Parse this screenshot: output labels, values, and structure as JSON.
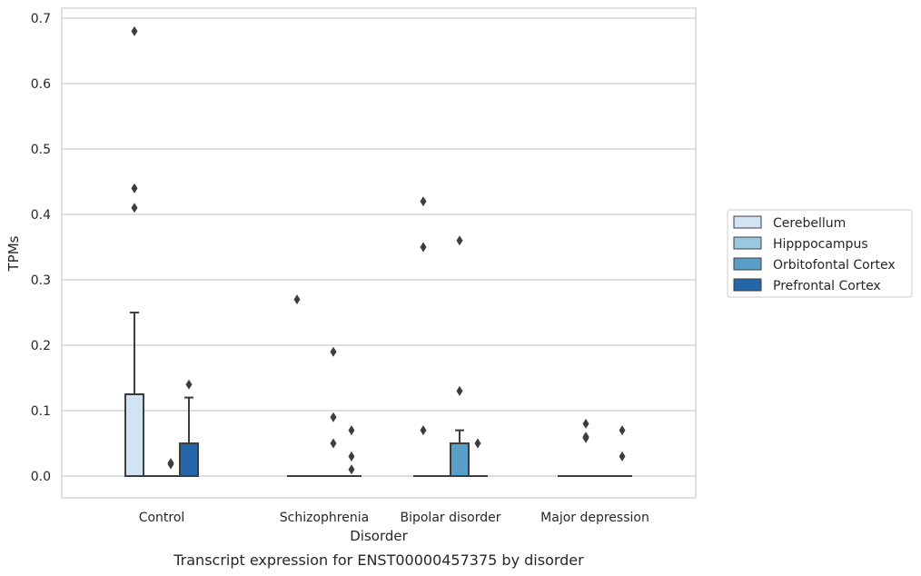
{
  "chart_data": {
    "type": "box",
    "title": "",
    "xlabel": "Disorder",
    "ylabel": "TPMs",
    "caption": "Transcript expression for ENST00000457375 by disorder",
    "ylim": [
      -0.034,
      0.714
    ],
    "yticks": [
      "0.0",
      "0.1",
      "0.2",
      "0.3",
      "0.4",
      "0.5",
      "0.6",
      "0.7"
    ],
    "ytick_values": [
      0,
      0.1,
      0.2,
      0.3,
      0.4,
      0.5,
      0.6,
      0.7
    ],
    "grid": true,
    "legend_position": "right",
    "categories": [
      "Control",
      "Schizophrenia",
      "Bipolar disorder",
      "Major depression"
    ],
    "series": [
      {
        "name": "Cerebellum",
        "color": "#d2e3f3",
        "boxes": [
          {
            "q1": 0,
            "median": 0,
            "q3": 0.125,
            "whisker_low": 0,
            "whisker_high": 0.25,
            "outliers": [
              0.68,
              0.44,
              0.41
            ]
          },
          {
            "q1": 0,
            "median": 0,
            "q3": 0,
            "whisker_low": 0,
            "whisker_high": 0,
            "outliers": [
              0.27
            ]
          },
          {
            "q1": 0,
            "median": 0,
            "q3": 0,
            "whisker_low": 0,
            "whisker_high": 0,
            "outliers": [
              0.42,
              0.35,
              0.07
            ]
          },
          {
            "q1": 0,
            "median": 0,
            "q3": 0,
            "whisker_low": 0,
            "whisker_high": 0,
            "outliers": []
          }
        ]
      },
      {
        "name": "Hipppocampus",
        "color": "#9ac8e0",
        "boxes": [
          {
            "q1": 0,
            "median": 0,
            "q3": 0,
            "whisker_low": 0,
            "whisker_high": 0,
            "outliers": []
          },
          {
            "q1": 0,
            "median": 0,
            "q3": 0,
            "whisker_low": 0,
            "whisker_high": 0,
            "outliers": []
          },
          {
            "q1": 0,
            "median": 0,
            "q3": 0,
            "whisker_low": 0,
            "whisker_high": 0,
            "outliers": []
          },
          {
            "q1": 0,
            "median": 0,
            "q3": 0,
            "whisker_low": 0,
            "whisker_high": 0,
            "outliers": [
              0.08,
              0.06,
              0.058
            ]
          }
        ]
      },
      {
        "name": "Orbitofontal Cortex",
        "color": "#5a9fca",
        "boxes": [
          {
            "q1": 0,
            "median": 0,
            "q3": 0,
            "whisker_low": 0,
            "whisker_high": 0,
            "outliers": [
              0.02,
              0.018
            ]
          },
          {
            "q1": 0,
            "median": 0,
            "q3": 0,
            "whisker_low": 0,
            "whisker_high": 0,
            "outliers": [
              0.19,
              0.09,
              0.05
            ]
          },
          {
            "q1": 0,
            "median": 0,
            "q3": 0.05,
            "whisker_low": 0,
            "whisker_high": 0.07,
            "outliers": [
              0.36,
              0.13
            ]
          },
          {
            "q1": 0,
            "median": 0,
            "q3": 0,
            "whisker_low": 0,
            "whisker_high": 0,
            "outliers": []
          }
        ]
      },
      {
        "name": "Prefrontal Cortex",
        "color": "#2466a8",
        "boxes": [
          {
            "q1": 0,
            "median": 0,
            "q3": 0.05,
            "whisker_low": 0,
            "whisker_high": 0.12,
            "outliers": [
              0.14
            ]
          },
          {
            "q1": 0,
            "median": 0,
            "q3": 0,
            "whisker_low": 0,
            "whisker_high": 0,
            "outliers": [
              0.07,
              0.03,
              0.01
            ]
          },
          {
            "q1": 0,
            "median": 0,
            "q3": 0,
            "whisker_low": 0,
            "whisker_high": 0,
            "outliers": [
              0.05
            ]
          },
          {
            "q1": 0,
            "median": 0,
            "q3": 0,
            "whisker_low": 0,
            "whisker_high": 0,
            "outliers": [
              0.07,
              0.03
            ]
          }
        ]
      }
    ]
  }
}
